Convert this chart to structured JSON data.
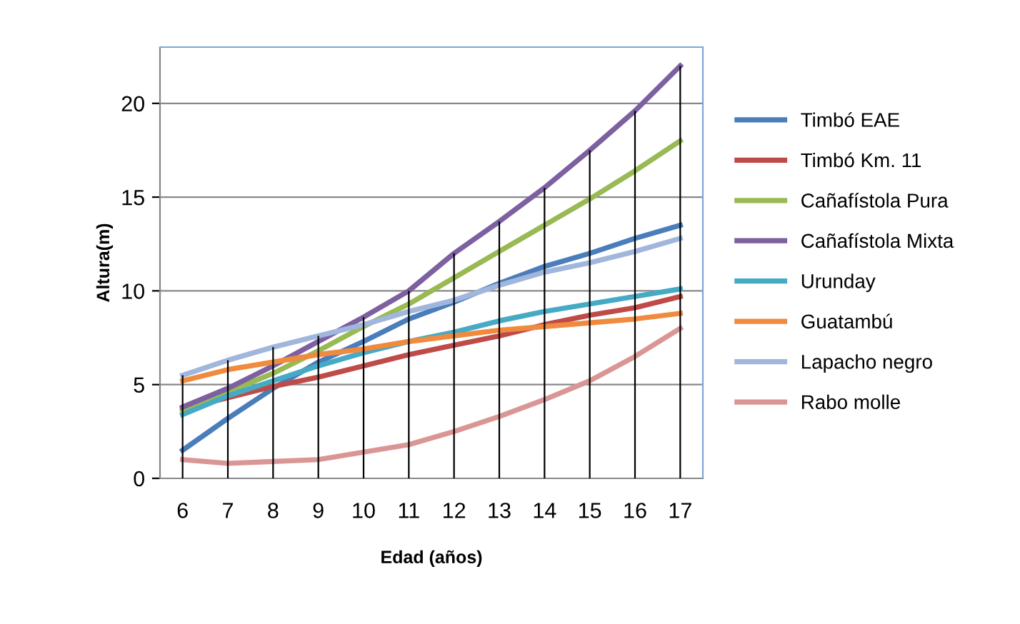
{
  "chart_data": {
    "type": "line",
    "xlabel": "Edad (años)",
    "ylabel": "Altura(m)",
    "categories": [
      "6",
      "7",
      "8",
      "9",
      "10",
      "11",
      "12",
      "13",
      "14",
      "15",
      "16",
      "17"
    ],
    "ylim": [
      0,
      23
    ],
    "yticks": [
      0,
      5,
      10,
      15,
      20
    ],
    "grid": "y",
    "legend": "right",
    "marker": "none",
    "line_style": "solid",
    "series": [
      {
        "name": "Timbó EAE",
        "color": "#4a7ebb",
        "values": [
          1.5,
          3.2,
          4.8,
          6.2,
          7.3,
          8.5,
          9.4,
          10.4,
          11.3,
          12.0,
          12.8,
          13.5
        ]
      },
      {
        "name": "Timbó Km. 11",
        "color": "#be4b48",
        "values": [
          3.7,
          4.3,
          4.9,
          5.4,
          6.0,
          6.6,
          7.1,
          7.6,
          8.2,
          8.7,
          9.1,
          9.7
        ]
      },
      {
        "name": "Cañafístola Pura",
        "color": "#98b954",
        "values": [
          3.6,
          4.6,
          5.6,
          6.8,
          8.1,
          9.3,
          10.7,
          12.1,
          13.5,
          14.9,
          16.4,
          18.0
        ]
      },
      {
        "name": "Cañafístola Mixta",
        "color": "#7d60a0",
        "values": [
          3.8,
          4.8,
          6.0,
          7.3,
          8.6,
          10.0,
          12.0,
          13.7,
          15.5,
          17.5,
          19.6,
          22.0
        ]
      },
      {
        "name": "Urunday",
        "color": "#46aac5",
        "values": [
          3.4,
          4.4,
          5.2,
          6.0,
          6.7,
          7.3,
          7.8,
          8.4,
          8.9,
          9.3,
          9.7,
          10.1
        ]
      },
      {
        "name": "Guatambú",
        "color": "#f08a3e",
        "values": [
          5.2,
          5.8,
          6.2,
          6.6,
          6.9,
          7.3,
          7.6,
          7.9,
          8.1,
          8.3,
          8.5,
          8.8
        ]
      },
      {
        "name": "Lapacho negro",
        "color": "#a0b6dc",
        "values": [
          5.5,
          6.3,
          7.0,
          7.6,
          8.2,
          8.9,
          9.5,
          10.3,
          11.0,
          11.5,
          12.1,
          12.8
        ]
      },
      {
        "name": "Rabo molle",
        "color": "#d99694",
        "values": [
          1.0,
          0.8,
          0.9,
          1.0,
          1.4,
          1.8,
          2.5,
          3.3,
          4.2,
          5.2,
          6.5,
          8.0
        ]
      },
      {
        "type": "bar",
        "color": "#000000",
        "values": [
          5.5,
          6.3,
          7.0,
          7.6,
          8.6,
          10.0,
          12.0,
          13.7,
          15.5,
          17.5,
          19.6,
          22.0
        ]
      }
    ]
  }
}
